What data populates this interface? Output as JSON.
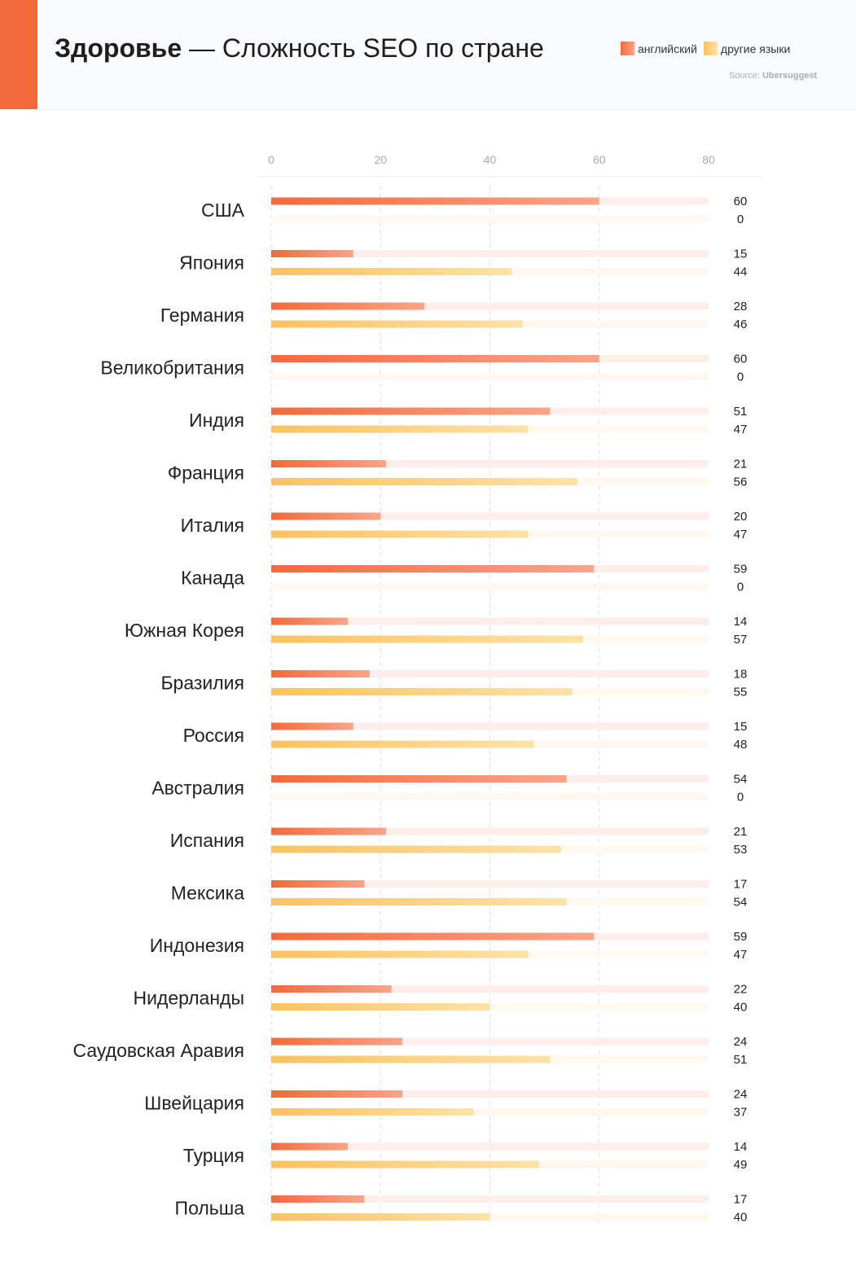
{
  "header": {
    "title_bold": "Здоровье",
    "title_rest": " — Сложность SEO по стране",
    "legend_english": "английский",
    "legend_other": "другие языки",
    "source_prefix": "Source: ",
    "source_name": "Ubersuggest"
  },
  "colors": {
    "english_start": "#f26a3b",
    "english_end": "#fba48a",
    "english_track": "#fdeeea",
    "other_start": "#fbc25f",
    "other_end": "#fde2a8",
    "other_track": "#fef8ee",
    "grid": "#dddddd",
    "accent": "#f26a3b"
  },
  "chart_data": {
    "type": "bar",
    "orientation": "horizontal",
    "xlim": [
      0,
      80
    ],
    "ticks": [
      "0",
      "20",
      "40",
      "60",
      "80"
    ],
    "categories": [
      "США",
      "Япония",
      "Германия",
      "Великобритания",
      "Индия",
      "Франция",
      "Италия",
      "Канада",
      "Южная Корея",
      "Бразилия",
      "Россия",
      "Австралия",
      "Испания",
      "Мексика",
      "Индонезия",
      "Нидерланды",
      "Саудовская Аравия",
      "Швейцария",
      "Турция",
      "Польша"
    ],
    "series": [
      {
        "name": "английский",
        "values": [
          60,
          15,
          28,
          60,
          51,
          21,
          20,
          59,
          14,
          18,
          15,
          54,
          21,
          17,
          59,
          22,
          24,
          24,
          14,
          17
        ]
      },
      {
        "name": "другие языки",
        "values": [
          0,
          44,
          46,
          0,
          47,
          56,
          47,
          0,
          57,
          55,
          48,
          0,
          53,
          54,
          47,
          40,
          51,
          37,
          49,
          40
        ]
      }
    ],
    "grid": true,
    "legend_position": "top-right"
  }
}
